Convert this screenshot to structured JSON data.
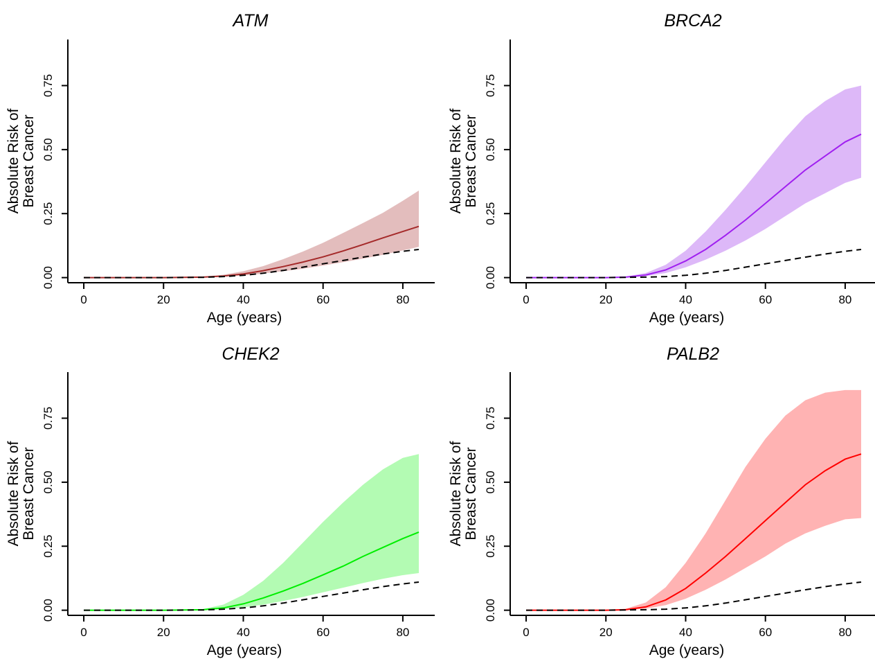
{
  "chart_data": [
    {
      "type": "line",
      "title": "ATM",
      "xlabel": "Age (years)",
      "ylabel_line1": "Absolute Risk of",
      "ylabel_line2": "Breast Cancer",
      "xlim": [
        -4,
        88
      ],
      "ylim": [
        -0.02,
        0.93
      ],
      "xticks": [
        0,
        20,
        40,
        60,
        80
      ],
      "yticks": [
        0.0,
        0.25,
        0.5,
        0.75
      ],
      "ytick_labels": [
        "0.00",
        "0.25",
        "0.50",
        "0.75"
      ],
      "color": "#a52a2a",
      "band_color": "#e3bdbd",
      "x": [
        0,
        10,
        20,
        30,
        35,
        40,
        45,
        50,
        55,
        60,
        65,
        70,
        75,
        80,
        84
      ],
      "series": [
        {
          "role": "carrier_estimate",
          "values": [
            0,
            0,
            0,
            0.002,
            0.006,
            0.014,
            0.027,
            0.043,
            0.061,
            0.081,
            0.104,
            0.129,
            0.155,
            0.18,
            0.2
          ]
        },
        {
          "role": "ci_lower",
          "values": [
            0,
            0,
            0,
            0.001,
            0.004,
            0.008,
            0.016,
            0.025,
            0.035,
            0.047,
            0.06,
            0.074,
            0.089,
            0.106,
            0.12
          ]
        },
        {
          "role": "ci_upper",
          "values": [
            0,
            0,
            0,
            0.004,
            0.011,
            0.025,
            0.045,
            0.072,
            0.102,
            0.136,
            0.174,
            0.213,
            0.253,
            0.3,
            0.34
          ]
        },
        {
          "role": "reference_dashed",
          "values": [
            0,
            0,
            0,
            0.001,
            0.004,
            0.009,
            0.017,
            0.028,
            0.041,
            0.054,
            0.067,
            0.08,
            0.092,
            0.103,
            0.11
          ]
        }
      ]
    },
    {
      "type": "line",
      "title": "BRCA2",
      "xlabel": "Age (years)",
      "ylabel_line1": "Absolute Risk of",
      "ylabel_line2": "Breast Cancer",
      "xlim": [
        -4,
        88
      ],
      "ylim": [
        -0.02,
        0.93
      ],
      "xticks": [
        0,
        20,
        40,
        60,
        80
      ],
      "yticks": [
        0.0,
        0.25,
        0.5,
        0.75
      ],
      "ytick_labels": [
        "0.00",
        "0.25",
        "0.50",
        "0.75"
      ],
      "color": "#a020f0",
      "band_color": "#ddb8f8",
      "x": [
        0,
        10,
        20,
        25,
        30,
        35,
        40,
        45,
        50,
        55,
        60,
        65,
        70,
        75,
        80,
        84
      ],
      "series": [
        {
          "role": "carrier_estimate",
          "values": [
            0,
            0,
            0,
            0.002,
            0.01,
            0.03,
            0.065,
            0.11,
            0.165,
            0.225,
            0.29,
            0.355,
            0.42,
            0.475,
            0.53,
            0.56
          ]
        },
        {
          "role": "ci_lower",
          "values": [
            0,
            0,
            0,
            0.001,
            0.006,
            0.018,
            0.04,
            0.07,
            0.105,
            0.145,
            0.19,
            0.24,
            0.29,
            0.33,
            0.37,
            0.39
          ]
        },
        {
          "role": "ci_upper",
          "values": [
            0,
            0,
            0,
            0.004,
            0.018,
            0.05,
            0.105,
            0.18,
            0.265,
            0.355,
            0.45,
            0.545,
            0.63,
            0.69,
            0.735,
            0.75
          ]
        },
        {
          "role": "reference_dashed",
          "values": [
            0,
            0,
            0,
            0.001,
            0.002,
            0.004,
            0.009,
            0.017,
            0.028,
            0.041,
            0.054,
            0.067,
            0.08,
            0.092,
            0.103,
            0.11
          ]
        }
      ]
    },
    {
      "type": "line",
      "title": "CHEK2",
      "xlabel": "Age (years)",
      "ylabel_line1": "Absolute Risk of",
      "ylabel_line2": "Breast Cancer",
      "xlim": [
        -4,
        88
      ],
      "ylim": [
        -0.02,
        0.93
      ],
      "xticks": [
        0,
        20,
        40,
        60,
        80
      ],
      "yticks": [
        0.0,
        0.25,
        0.5,
        0.75
      ],
      "ytick_labels": [
        "0.00",
        "0.25",
        "0.50",
        "0.75"
      ],
      "color": "#00ee00",
      "band_color": "#b3fbb3",
      "x": [
        0,
        10,
        20,
        30,
        35,
        40,
        45,
        50,
        55,
        60,
        65,
        70,
        75,
        80,
        84
      ],
      "series": [
        {
          "role": "carrier_estimate",
          "values": [
            0,
            0,
            0,
            0.002,
            0.009,
            0.025,
            0.048,
            0.075,
            0.105,
            0.138,
            0.172,
            0.21,
            0.245,
            0.28,
            0.305
          ]
        },
        {
          "role": "ci_lower",
          "values": [
            0,
            0,
            0,
            0.001,
            0.004,
            0.011,
            0.022,
            0.036,
            0.052,
            0.07,
            0.088,
            0.106,
            0.123,
            0.137,
            0.145
          ]
        },
        {
          "role": "ci_upper",
          "values": [
            0,
            0,
            0,
            0.005,
            0.022,
            0.06,
            0.115,
            0.185,
            0.265,
            0.345,
            0.42,
            0.49,
            0.55,
            0.595,
            0.61
          ]
        },
        {
          "role": "reference_dashed",
          "values": [
            0,
            0,
            0,
            0.001,
            0.004,
            0.009,
            0.017,
            0.028,
            0.041,
            0.054,
            0.067,
            0.08,
            0.092,
            0.103,
            0.11
          ]
        }
      ]
    },
    {
      "type": "line",
      "title": "PALB2",
      "xlabel": "Age (years)",
      "ylabel_line1": "Absolute Risk of",
      "ylabel_line2": "Breast Cancer",
      "xlim": [
        -4,
        88
      ],
      "ylim": [
        -0.02,
        0.93
      ],
      "xticks": [
        0,
        20,
        40,
        60,
        80
      ],
      "yticks": [
        0.0,
        0.25,
        0.5,
        0.75
      ],
      "ytick_labels": [
        "0.00",
        "0.25",
        "0.50",
        "0.75"
      ],
      "color": "#ff0000",
      "band_color": "#ffb3b3",
      "x": [
        0,
        10,
        20,
        25,
        30,
        35,
        40,
        45,
        50,
        55,
        60,
        65,
        70,
        75,
        80,
        84
      ],
      "series": [
        {
          "role": "carrier_estimate",
          "values": [
            0,
            0,
            0,
            0.002,
            0.013,
            0.04,
            0.085,
            0.145,
            0.21,
            0.28,
            0.35,
            0.42,
            0.49,
            0.545,
            0.59,
            0.61
          ]
        },
        {
          "role": "ci_lower",
          "values": [
            0,
            0,
            0,
            0.001,
            0.006,
            0.02,
            0.045,
            0.08,
            0.12,
            0.165,
            0.21,
            0.26,
            0.3,
            0.33,
            0.355,
            0.36
          ]
        },
        {
          "role": "ci_upper",
          "values": [
            0,
            0,
            0,
            0.006,
            0.03,
            0.09,
            0.185,
            0.3,
            0.43,
            0.56,
            0.67,
            0.76,
            0.82,
            0.85,
            0.86,
            0.86
          ]
        },
        {
          "role": "reference_dashed",
          "values": [
            0,
            0,
            0,
            0.001,
            0.002,
            0.004,
            0.009,
            0.017,
            0.028,
            0.041,
            0.054,
            0.067,
            0.08,
            0.092,
            0.103,
            0.11
          ]
        }
      ]
    }
  ]
}
